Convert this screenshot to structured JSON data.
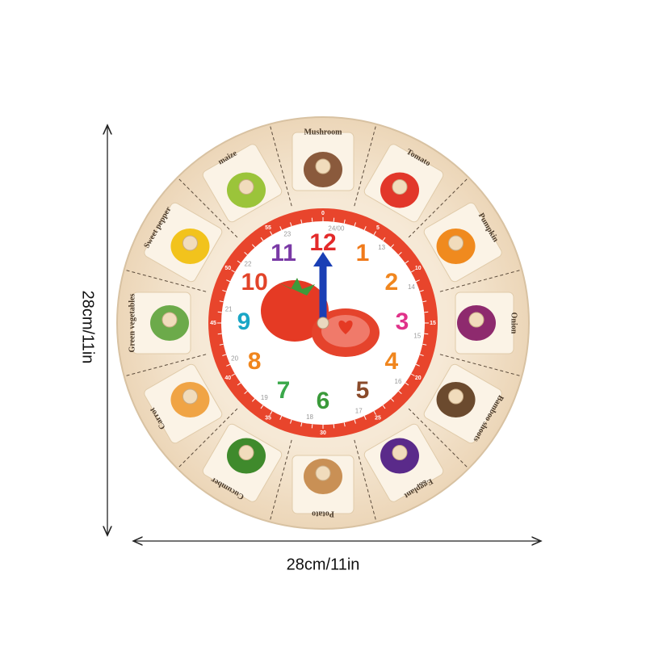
{
  "dimensions": {
    "height": "28cm/11in",
    "width": "28cm/11in"
  },
  "clock": {
    "hours": [
      12,
      1,
      2,
      3,
      4,
      5,
      6,
      7,
      8,
      9,
      10,
      11
    ],
    "hours24": [
      "24/00",
      "13",
      "14",
      "15",
      "16",
      "17",
      "18",
      "19",
      "20",
      "21",
      "22",
      "23"
    ],
    "minutes": [
      0,
      5,
      10,
      15,
      20,
      25,
      30,
      35,
      40,
      45,
      50,
      55
    ],
    "vegetables": [
      "Mushroom",
      "Tomato",
      "Pumpkin",
      "Onion",
      "Bamboo shoots",
      "Eggplant",
      "Potato",
      "Cucumber",
      "Carrot",
      "Green vegetables",
      "Sweet pepper",
      "maize"
    ]
  }
}
